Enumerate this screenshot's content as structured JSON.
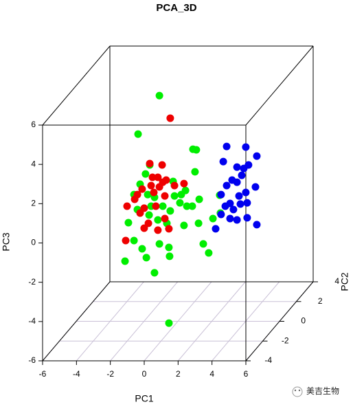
{
  "chart_data": {
    "type": "scatter3d",
    "title": "PCA_3D",
    "xlabel": "PC1",
    "ylabel": "PC2",
    "zlabel": "PC3",
    "xlim": [
      -6,
      6
    ],
    "ylim": [
      -4,
      4
    ],
    "zlim": [
      -6,
      6
    ],
    "xticks": [
      -6,
      -4,
      -2,
      0,
      2,
      4,
      6
    ],
    "yticks": [
      -4,
      -2,
      0,
      2,
      4
    ],
    "zticks": [
      -6,
      -4,
      -2,
      0,
      2,
      4,
      6
    ],
    "grid": true,
    "series": [
      {
        "name": "green",
        "color": "#00ee00",
        "x": [
          -1.09,
          -2.35,
          0.89,
          1.09,
          1.01,
          -1.91,
          -1.66,
          -2.23,
          -2.59,
          -0.28,
          -0.2,
          0.12,
          0.53,
          0.45,
          1.26,
          0.85,
          1.22,
          0.36,
          -0.45,
          -0.65,
          -1.18,
          -1.38,
          -1.58,
          -2.39,
          -2.92,
          -2.59,
          -2.11,
          -1.86,
          -3.12,
          -1.09,
          -0.53,
          -0.49,
          -1.38,
          1.5,
          1.82,
          2.51,
          2.47,
          2.07,
          -0.89,
          -1.78,
          -1.7,
          1.46,
          0.2
        ],
        "y": [
          0,
          0,
          0,
          0,
          0,
          0,
          0,
          0,
          0,
          0,
          0,
          0,
          0,
          0,
          0,
          0,
          0,
          0,
          0,
          0,
          0,
          0,
          0,
          0,
          0,
          0,
          0,
          0,
          0,
          0,
          0,
          0,
          0,
          0,
          0,
          0,
          0,
          0,
          0,
          0,
          0,
          -4,
          0
        ],
        "z": [
          5.49,
          3.53,
          2.76,
          2.73,
          1.61,
          1.5,
          1.96,
          0.98,
          0.45,
          1.12,
          0.38,
          0.03,
          -0.14,
          0.66,
          0.21,
          -0.14,
          -1.01,
          -1.12,
          -0.38,
          -1.01,
          -0.84,
          0.31,
          -0.14,
          -0.31,
          -0.98,
          -1.89,
          -2.31,
          -2.76,
          -2.94,
          -2.06,
          -2.24,
          -2.69,
          -3.53,
          -2.06,
          -2.52,
          -0.49,
          0.42,
          -0.77,
          -0.14,
          0.45,
          -0.59,
          -4.08,
          0.45
        ]
      },
      {
        "name": "red",
        "color": "#ee0000",
        "x": [
          -0.45,
          -1.66,
          -0.93,
          -1.18,
          -0.69,
          -2.11,
          -2.39,
          -3.0,
          -2.55,
          -1.58,
          -1.09,
          -0.2,
          0.36,
          -1.99,
          -1.74,
          -1.99,
          -1.18,
          -0.77,
          -0.53,
          -3.08,
          -1.42,
          -0.77,
          -1.3,
          -2.23,
          -0.89,
          -1.5
        ],
        "y": [
          0,
          0,
          0,
          0,
          0,
          0,
          0,
          0,
          0,
          0,
          0,
          0,
          0,
          0,
          0,
          0,
          0,
          0,
          0,
          0,
          0,
          0,
          0,
          0,
          0,
          0
        ],
        "z": [
          4.34,
          2.03,
          1.96,
          1.33,
          1.19,
          0.73,
          0.45,
          -0.14,
          0.21,
          0.91,
          0.84,
          0.91,
          1.01,
          -0.24,
          -1.01,
          -1.26,
          -1.36,
          -0.77,
          -1.29,
          -1.89,
          0.56,
          0.38,
          -0.14,
          -0.49,
          1.08,
          1.33
        ]
      },
      {
        "name": "blue",
        "color": "#0000ee",
        "x": [
          2.88,
          4.01,
          4.66,
          2.68,
          3.49,
          3.89,
          4.17,
          3.2,
          3.49,
          2.88,
          4.58,
          4.01,
          3.61,
          2.55,
          3.08,
          3.69,
          4.09,
          2.8,
          2.55,
          3.08,
          3.49,
          4.09,
          4.66,
          2.23,
          3.28,
          3.77
        ],
        "y": [
          0,
          0,
          0,
          0,
          0,
          0,
          0,
          0,
          0,
          0,
          0,
          0,
          0,
          0,
          0,
          0,
          0,
          0,
          0,
          0,
          0,
          0,
          0,
          0,
          0,
          0
        ],
        "z": [
          2.9,
          2.87,
          2.41,
          2.13,
          1.85,
          1.78,
          1.96,
          1.19,
          1.08,
          0.91,
          0.84,
          0.56,
          0.38,
          0.45,
          0.0,
          -0.03,
          0.03,
          -0.14,
          -0.56,
          -0.77,
          -0.84,
          -0.73,
          -1.08,
          -1.29,
          -0.31,
          1.43
        ]
      }
    ]
  },
  "watermark": "美吉生物"
}
